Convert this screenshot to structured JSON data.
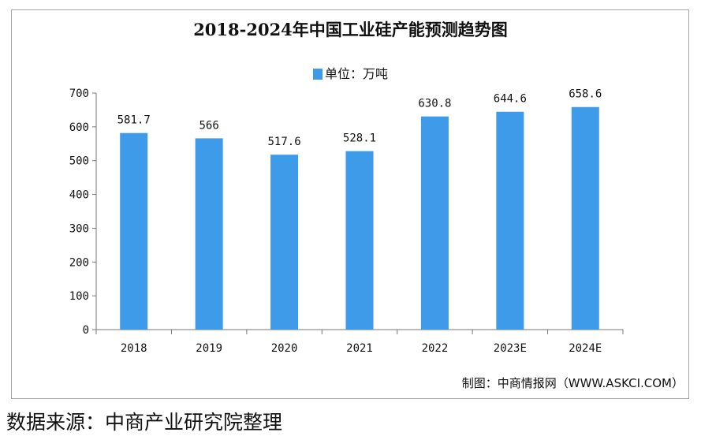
{
  "chart_data": {
    "type": "bar",
    "title": "2018-2024年中国工业硅产能预测趋势图",
    "legend": "单位：万吨",
    "categories": [
      "2018",
      "2019",
      "2020",
      "2021",
      "2022",
      "2023E",
      "2024E"
    ],
    "values": [
      581.7,
      566,
      517.6,
      528.1,
      630.8,
      644.6,
      658.6
    ],
    "value_labels": [
      "581.7",
      "566",
      "517.6",
      "528.1",
      "630.8",
      "644.6",
      "658.6"
    ],
    "ylim": [
      0,
      700
    ],
    "yticks": [
      "0",
      "100",
      "200",
      "300",
      "400",
      "500",
      "600",
      "700"
    ],
    "bar_color": "#3d9be9",
    "grid": false,
    "legend_position": "top"
  },
  "credit": "制图：中商情报网（WWW.ASKCI.COM）",
  "source": "数据来源：中商产业研究院整理"
}
